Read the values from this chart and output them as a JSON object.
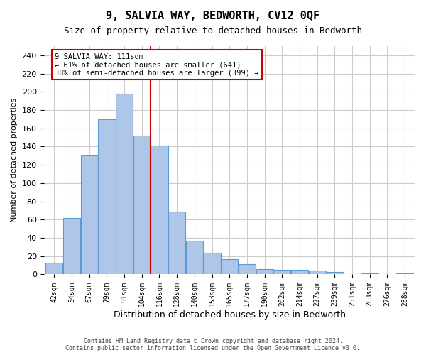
{
  "title": "9, SALVIA WAY, BEDWORTH, CV12 0QF",
  "subtitle": "Size of property relative to detached houses in Bedworth",
  "xlabel": "Distribution of detached houses by size in Bedworth",
  "ylabel": "Number of detached properties",
  "categories": [
    "42sqm",
    "54sqm",
    "67sqm",
    "79sqm",
    "91sqm",
    "104sqm",
    "116sqm",
    "128sqm",
    "140sqm",
    "153sqm",
    "165sqm",
    "177sqm",
    "190sqm",
    "202sqm",
    "214sqm",
    "227sqm",
    "239sqm",
    "251sqm",
    "263sqm",
    "276sqm",
    "288sqm"
  ],
  "values": [
    13,
    62,
    130,
    170,
    198,
    152,
    141,
    69,
    37,
    24,
    17,
    11,
    6,
    5,
    5,
    4,
    3,
    0,
    1,
    0,
    1
  ],
  "bar_color": "#aec6e8",
  "bar_edge_color": "#5b9bd5",
  "annotation_line1": "9 SALVIA WAY: 111sqm",
  "annotation_line2": "← 61% of detached houses are smaller (641)",
  "annotation_line3": "38% of semi-detached houses are larger (399) →",
  "annotation_box_color": "#ffffff",
  "annotation_box_edge": "#cc0000",
  "line_color": "#cc0000",
  "property_line_x": 5.5,
  "ylim": [
    0,
    250
  ],
  "yticks": [
    0,
    20,
    40,
    60,
    80,
    100,
    120,
    140,
    160,
    180,
    200,
    220,
    240
  ],
  "footer_line1": "Contains HM Land Registry data © Crown copyright and database right 2024.",
  "footer_line2": "Contains public sector information licensed under the Open Government Licence v3.0.",
  "background_color": "#ffffff",
  "grid_color": "#cccccc"
}
